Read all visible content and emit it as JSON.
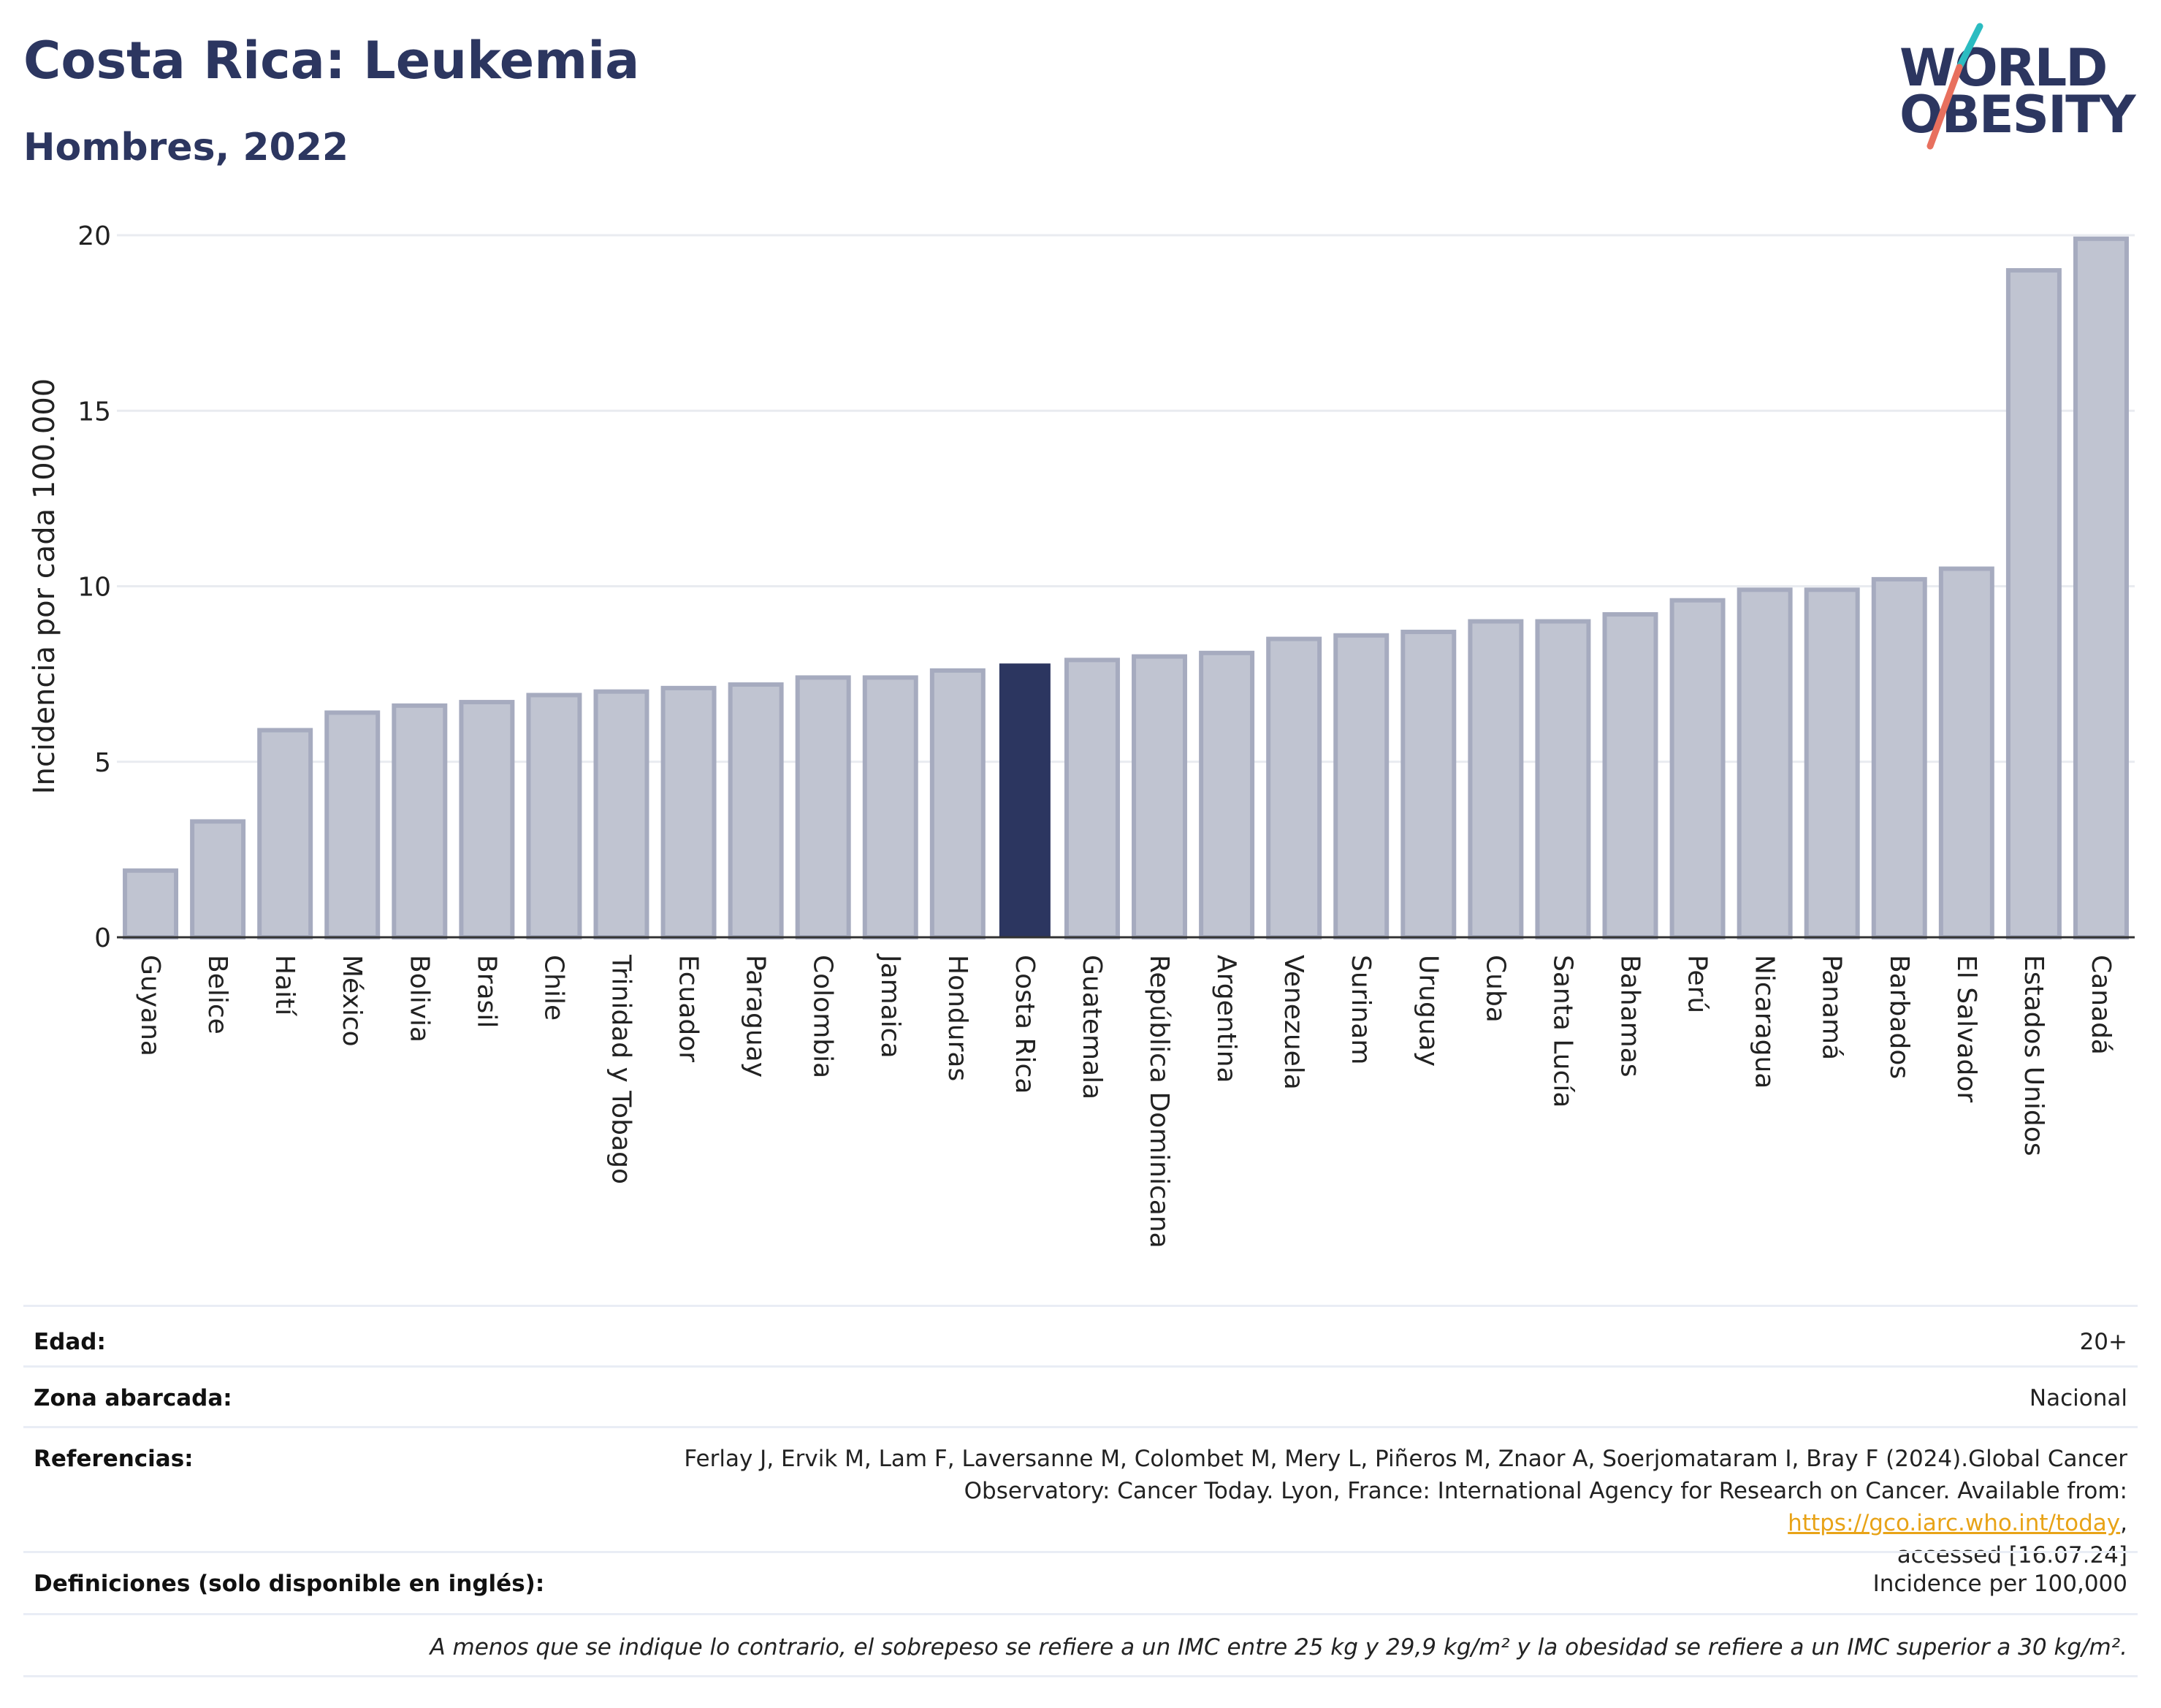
{
  "header": {
    "title": "Costa Rica: Leukemia",
    "subtitle": "Hombres, 2022"
  },
  "logo": {
    "line1": "WORLD",
    "line2": "OBESITY"
  },
  "chart_data": {
    "type": "bar",
    "ylabel": "Incidencia por cada 100.000",
    "xlabel": "",
    "ylim": [
      0,
      20
    ],
    "yticks": [
      0,
      5,
      10,
      15,
      20
    ],
    "grid": true,
    "highlight": "Costa Rica",
    "colors": {
      "bar": "#c0c4d1",
      "bar_border": "#a6abbf",
      "highlight": "#2c3660",
      "axis": "#333333",
      "grid": "#e9ebf0"
    },
    "categories": [
      "Guyana",
      "Belice",
      "Haití",
      "México",
      "Bolivia",
      "Brasil",
      "Chile",
      "Trinidad y Tobago",
      "Ecuador",
      "Paraguay",
      "Colombia",
      "Jamaica",
      "Honduras",
      "Costa Rica",
      "Guatemala",
      "República Dominicana",
      "Argentina",
      "Venezuela",
      "Surinam",
      "Uruguay",
      "Cuba",
      "Santa Lucía",
      "Bahamas",
      "Perú",
      "Nicaragua",
      "Panamá",
      "Barbados",
      "El Salvador",
      "Estados Unidos",
      "Canadá"
    ],
    "values": [
      1.9,
      3.3,
      5.9,
      6.4,
      6.6,
      6.7,
      6.9,
      7.0,
      7.1,
      7.2,
      7.4,
      7.4,
      7.6,
      7.8,
      7.9,
      8.0,
      8.1,
      8.5,
      8.6,
      8.7,
      9.0,
      9.0,
      9.2,
      9.6,
      9.9,
      9.9,
      10.2,
      10.5,
      19.0,
      19.9
    ]
  },
  "info": {
    "age_label": "Edad:",
    "age_value": "20+",
    "zone_label": "Zona abarcada:",
    "zone_value": "Nacional",
    "ref_label": "Referencias:",
    "ref_line1": "Ferlay J, Ervik M, Lam F, Laversanne M, Colombet M, Mery L, Piñeros M, Znaor A, Soerjomataram I, Bray F (2024).Global Cancer",
    "ref_line2_pre": "Observatory: Cancer Today. Lyon, France: International Agency for Research on Cancer. Available from: ",
    "ref_link": "https://gco.iarc.who.int/today",
    "ref_line2_post": ",",
    "ref_line3": "accessed [16.07.24]",
    "def_label": "Definiciones (solo disponible en inglés):",
    "def_value": "Incidence per 100,000",
    "note": "A menos que se indique lo contrario, el sobrepeso se refiere a un IMC entre 25 kg y 29,9 kg/m² y la obesidad se refiere a un IMC superior a 30 kg/m²."
  }
}
